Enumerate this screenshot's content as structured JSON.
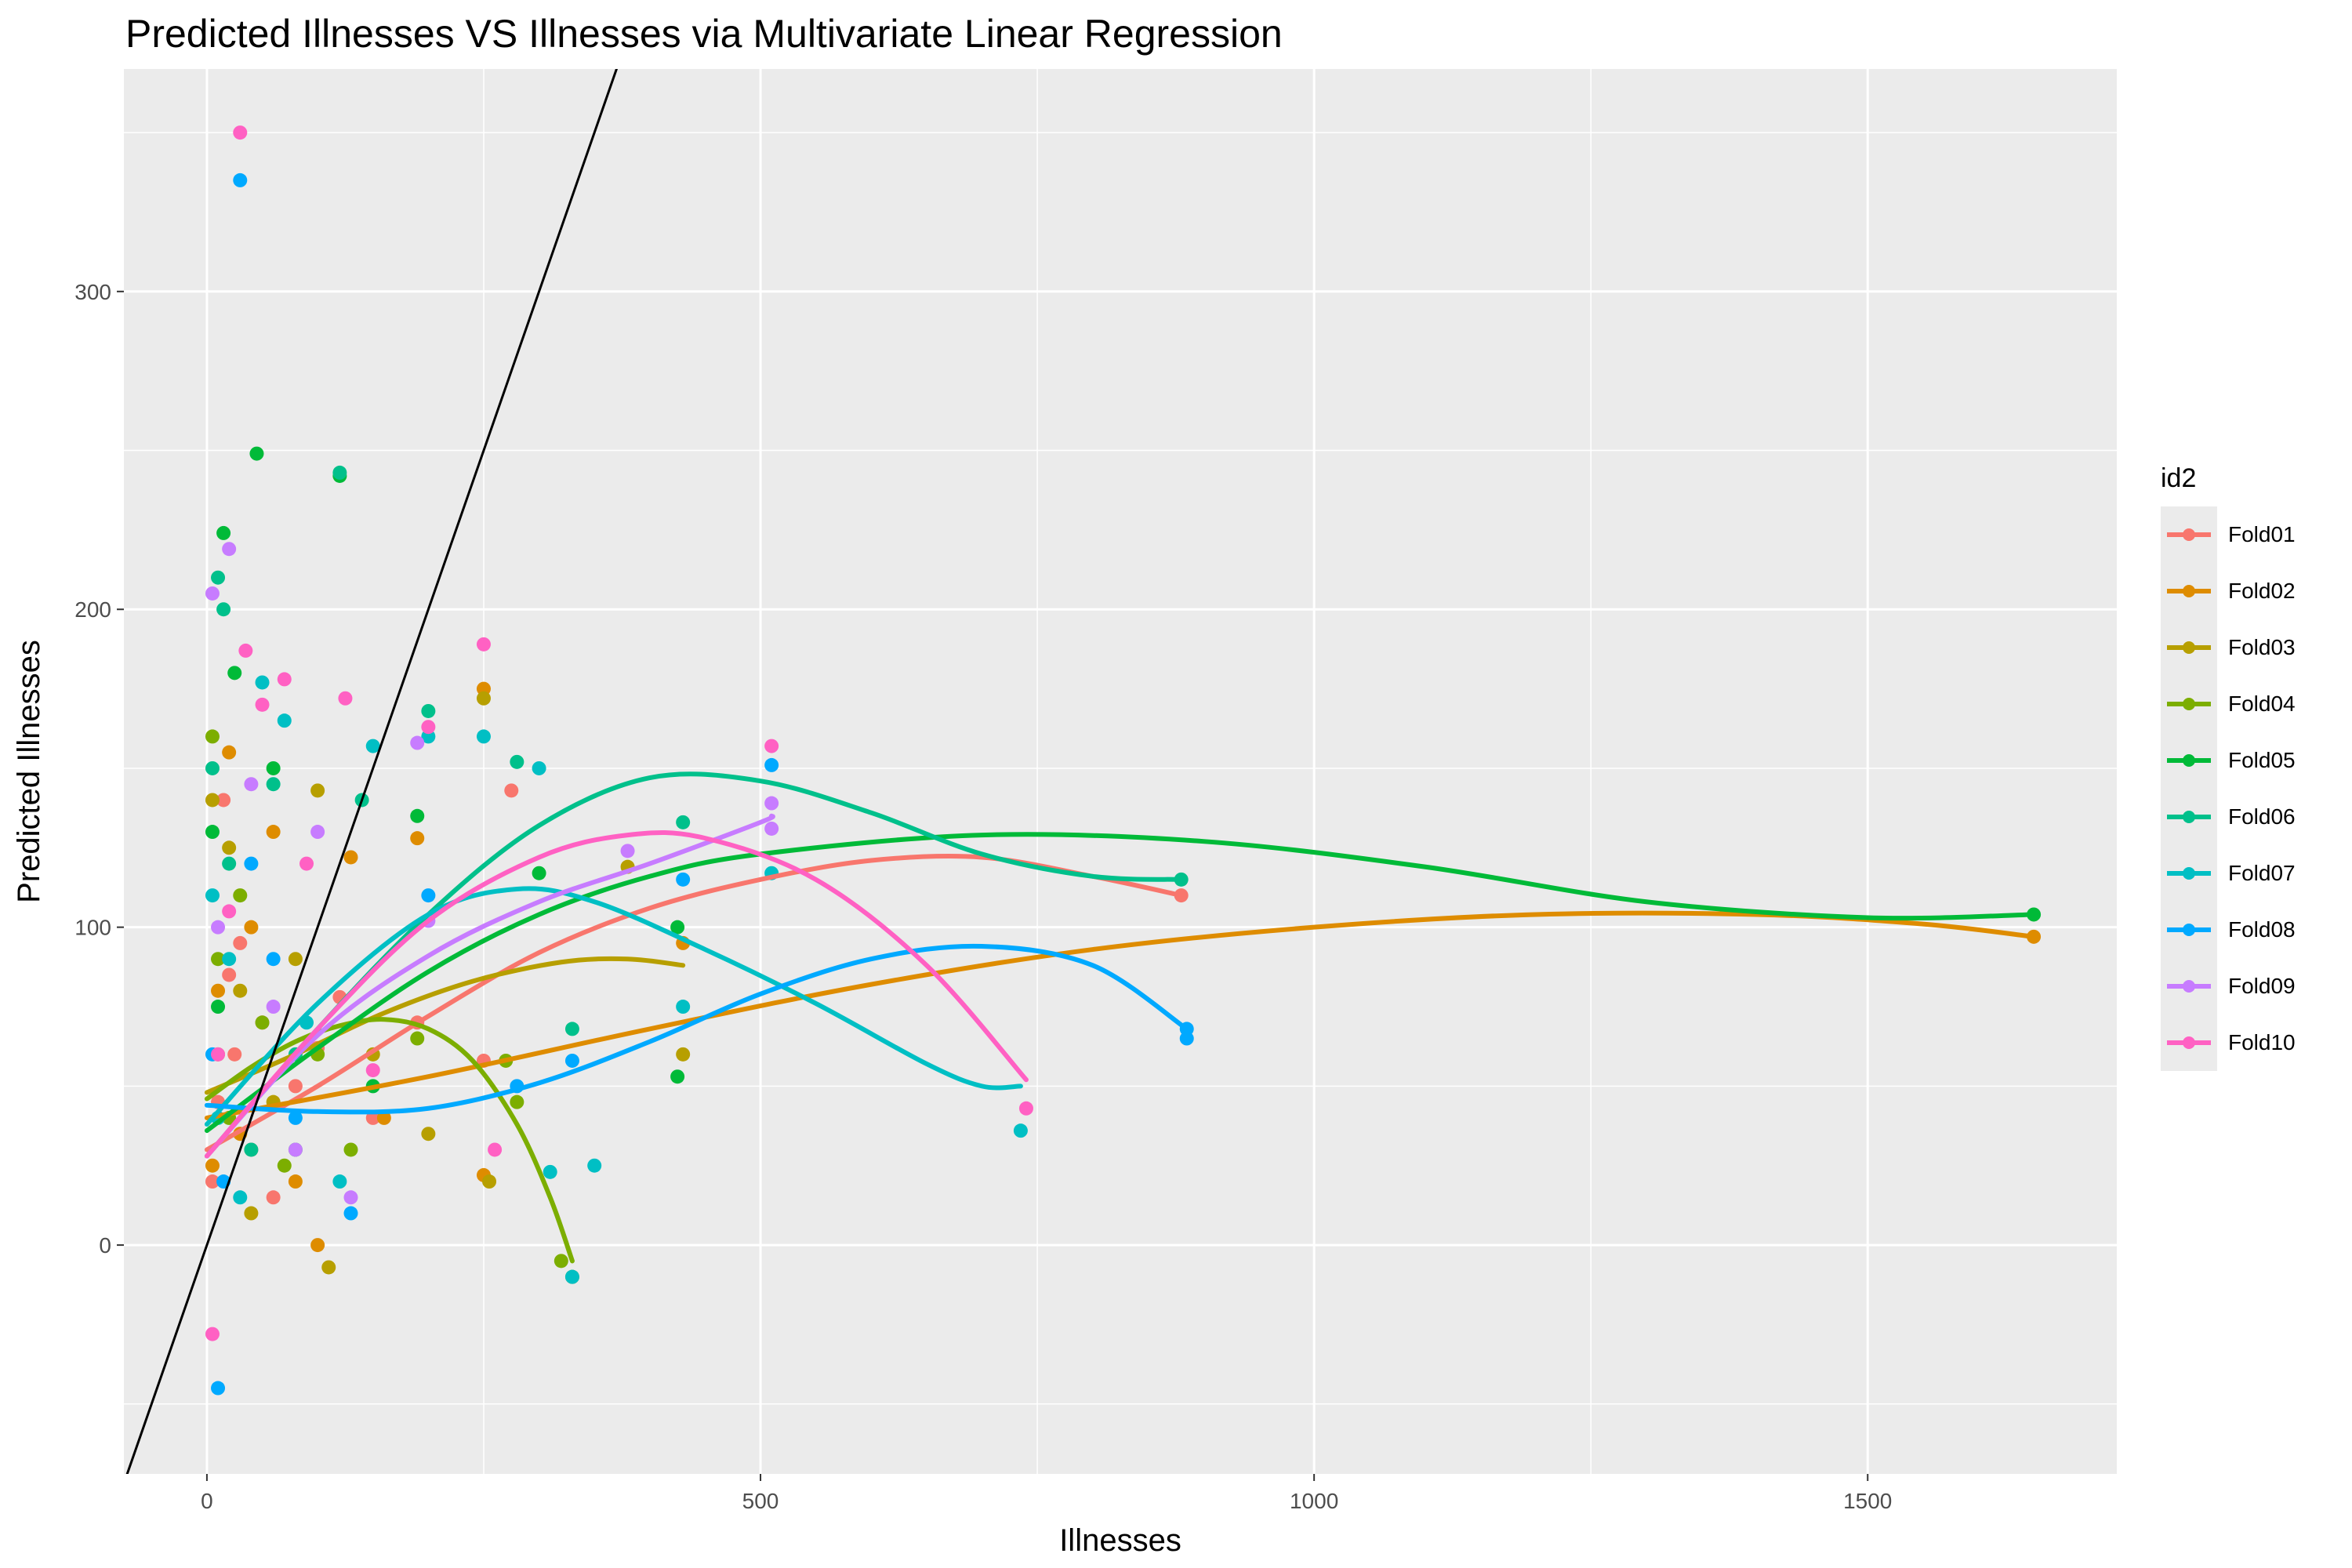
{
  "chart_data": {
    "type": "scatter",
    "title": "Predicted Illnesses VS Illnesses via Multivariate Linear Regression",
    "xlabel": "Illnesses",
    "ylabel": "Predicted Illnesses",
    "xlim": [
      -75,
      1725
    ],
    "ylim": [
      -72,
      370
    ],
    "x_ticks": [
      0,
      500,
      1000,
      1500
    ],
    "y_ticks": [
      0,
      100,
      200,
      300
    ],
    "grid": true,
    "legend_position": "right",
    "legend_title": "id2",
    "reference_line": {
      "slope": 1,
      "intercept": 0,
      "color": "#000000"
    },
    "series": [
      {
        "name": "Fold01",
        "color": "#F8766D",
        "points": [
          [
            5,
            20
          ],
          [
            10,
            45
          ],
          [
            15,
            140
          ],
          [
            20,
            85
          ],
          [
            25,
            60
          ],
          [
            30,
            95
          ],
          [
            40,
            30
          ],
          [
            50,
            70
          ],
          [
            60,
            15
          ],
          [
            80,
            50
          ],
          [
            100,
            62
          ],
          [
            120,
            78
          ],
          [
            150,
            40
          ],
          [
            190,
            70
          ],
          [
            250,
            58
          ],
          [
            275,
            143
          ],
          [
            880,
            110
          ]
        ],
        "smooth": [
          [
            0,
            30
          ],
          [
            100,
            50
          ],
          [
            200,
            72
          ],
          [
            300,
            92
          ],
          [
            400,
            106
          ],
          [
            500,
            115
          ],
          [
            600,
            121
          ],
          [
            700,
            122
          ],
          [
            800,
            116
          ],
          [
            880,
            110
          ]
        ]
      },
      {
        "name": "Fold02",
        "color": "#DE8C00",
        "points": [
          [
            5,
            25
          ],
          [
            10,
            80
          ],
          [
            20,
            155
          ],
          [
            30,
            35
          ],
          [
            40,
            100
          ],
          [
            60,
            130
          ],
          [
            80,
            20
          ],
          [
            100,
            0
          ],
          [
            130,
            122
          ],
          [
            160,
            40
          ],
          [
            190,
            128
          ],
          [
            250,
            175
          ],
          [
            250,
            22
          ],
          [
            430,
            95
          ],
          [
            1650,
            97
          ]
        ],
        "smooth": [
          [
            0,
            40
          ],
          [
            200,
            53
          ],
          [
            400,
            68
          ],
          [
            600,
            82
          ],
          [
            800,
            93
          ],
          [
            1000,
            100
          ],
          [
            1200,
            104
          ],
          [
            1400,
            104
          ],
          [
            1550,
            101
          ],
          [
            1650,
            97
          ]
        ]
      },
      {
        "name": "Fold03",
        "color": "#B79F00",
        "points": [
          [
            5,
            140
          ],
          [
            10,
            60
          ],
          [
            20,
            125
          ],
          [
            30,
            80
          ],
          [
            40,
            10
          ],
          [
            60,
            45
          ],
          [
            80,
            90
          ],
          [
            100,
            143
          ],
          [
            110,
            -7
          ],
          [
            150,
            60
          ],
          [
            200,
            35
          ],
          [
            250,
            172
          ],
          [
            255,
            20
          ],
          [
            380,
            119
          ],
          [
            430,
            60
          ]
        ],
        "smooth": [
          [
            0,
            48
          ],
          [
            80,
            60
          ],
          [
            160,
            73
          ],
          [
            240,
            83
          ],
          [
            320,
            89
          ],
          [
            380,
            90
          ],
          [
            430,
            88
          ]
        ]
      },
      {
        "name": "Fold04",
        "color": "#7CAE00",
        "points": [
          [
            5,
            160
          ],
          [
            10,
            90
          ],
          [
            20,
            40
          ],
          [
            30,
            110
          ],
          [
            50,
            70
          ],
          [
            70,
            25
          ],
          [
            100,
            60
          ],
          [
            130,
            30
          ],
          [
            190,
            65
          ],
          [
            270,
            58
          ],
          [
            280,
            45
          ],
          [
            320,
            -5
          ],
          [
            330,
            -10
          ]
        ],
        "smooth": [
          [
            0,
            46
          ],
          [
            40,
            56
          ],
          [
            80,
            64
          ],
          [
            120,
            69
          ],
          [
            160,
            71
          ],
          [
            200,
            68
          ],
          [
            240,
            58
          ],
          [
            280,
            38
          ],
          [
            310,
            15
          ],
          [
            330,
            -5
          ]
        ]
      },
      {
        "name": "Fold05",
        "color": "#00BA38",
        "points": [
          [
            5,
            130
          ],
          [
            10,
            75
          ],
          [
            15,
            224
          ],
          [
            25,
            180
          ],
          [
            45,
            249
          ],
          [
            60,
            150
          ],
          [
            80,
            30
          ],
          [
            120,
            242
          ],
          [
            150,
            50
          ],
          [
            190,
            135
          ],
          [
            300,
            117
          ],
          [
            425,
            100
          ],
          [
            425,
            53
          ],
          [
            1650,
            104
          ]
        ],
        "smooth": [
          [
            0,
            36
          ],
          [
            100,
            62
          ],
          [
            200,
            86
          ],
          [
            300,
            104
          ],
          [
            400,
            116
          ],
          [
            500,
            123
          ],
          [
            700,
            129
          ],
          [
            900,
            127
          ],
          [
            1100,
            119
          ],
          [
            1300,
            108
          ],
          [
            1500,
            103
          ],
          [
            1650,
            104
          ]
        ]
      },
      {
        "name": "Fold06",
        "color": "#00C08B",
        "points": [
          [
            5,
            150
          ],
          [
            10,
            210
          ],
          [
            15,
            200
          ],
          [
            20,
            120
          ],
          [
            40,
            30
          ],
          [
            60,
            145
          ],
          [
            80,
            60
          ],
          [
            120,
            243
          ],
          [
            140,
            140
          ],
          [
            200,
            168
          ],
          [
            280,
            152
          ],
          [
            330,
            68
          ],
          [
            430,
            133
          ],
          [
            880,
            115
          ]
        ],
        "smooth": [
          [
            0,
            28
          ],
          [
            100,
            68
          ],
          [
            200,
            104
          ],
          [
            300,
            132
          ],
          [
            400,
            147
          ],
          [
            500,
            146
          ],
          [
            600,
            136
          ],
          [
            700,
            123
          ],
          [
            800,
            116
          ],
          [
            880,
            115
          ]
        ]
      },
      {
        "name": "Fold07",
        "color": "#00BFC4",
        "points": [
          [
            5,
            110
          ],
          [
            10,
            40
          ],
          [
            20,
            90
          ],
          [
            30,
            15
          ],
          [
            50,
            177
          ],
          [
            70,
            165
          ],
          [
            90,
            70
          ],
          [
            120,
            20
          ],
          [
            150,
            157
          ],
          [
            200,
            160
          ],
          [
            250,
            160
          ],
          [
            300,
            150
          ],
          [
            310,
            23
          ],
          [
            330,
            -10
          ],
          [
            350,
            25
          ],
          [
            430,
            75
          ],
          [
            510,
            117
          ],
          [
            735,
            36
          ]
        ],
        "smooth": [
          [
            0,
            38
          ],
          [
            100,
            76
          ],
          [
            200,
            104
          ],
          [
            280,
            112
          ],
          [
            350,
            108
          ],
          [
            450,
            93
          ],
          [
            550,
            76
          ],
          [
            650,
            57
          ],
          [
            700,
            50
          ],
          [
            735,
            50
          ]
        ]
      },
      {
        "name": "Fold08",
        "color": "#00A9FF",
        "points": [
          [
            5,
            60
          ],
          [
            10,
            -45
          ],
          [
            15,
            20
          ],
          [
            30,
            335
          ],
          [
            40,
            120
          ],
          [
            60,
            90
          ],
          [
            80,
            40
          ],
          [
            130,
            10
          ],
          [
            200,
            110
          ],
          [
            280,
            50
          ],
          [
            330,
            58
          ],
          [
            430,
            115
          ],
          [
            510,
            151
          ],
          [
            885,
            68
          ],
          [
            885,
            65
          ]
        ],
        "smooth": [
          [
            0,
            44
          ],
          [
            100,
            42
          ],
          [
            200,
            43
          ],
          [
            300,
            51
          ],
          [
            400,
            64
          ],
          [
            500,
            79
          ],
          [
            600,
            90
          ],
          [
            700,
            94
          ],
          [
            800,
            88
          ],
          [
            885,
            68
          ]
        ]
      },
      {
        "name": "Fold09",
        "color": "#C77CFF",
        "points": [
          [
            5,
            205
          ],
          [
            10,
            100
          ],
          [
            20,
            219
          ],
          [
            40,
            145
          ],
          [
            60,
            75
          ],
          [
            80,
            30
          ],
          [
            100,
            130
          ],
          [
            130,
            15
          ],
          [
            190,
            158
          ],
          [
            200,
            102
          ],
          [
            380,
            124
          ],
          [
            510,
            139
          ],
          [
            510,
            131
          ]
        ],
        "smooth": [
          [
            0,
            28
          ],
          [
            100,
            66
          ],
          [
            200,
            91
          ],
          [
            300,
            108
          ],
          [
            400,
            120
          ],
          [
            500,
            133
          ],
          [
            510,
            135
          ]
        ]
      },
      {
        "name": "Fold10",
        "color": "#FF61C3",
        "points": [
          [
            5,
            -28
          ],
          [
            10,
            60
          ],
          [
            20,
            105
          ],
          [
            30,
            350
          ],
          [
            35,
            187
          ],
          [
            50,
            170
          ],
          [
            70,
            178
          ],
          [
            90,
            120
          ],
          [
            125,
            172
          ],
          [
            150,
            55
          ],
          [
            200,
            163
          ],
          [
            250,
            189
          ],
          [
            260,
            30
          ],
          [
            510,
            157
          ],
          [
            740,
            43
          ]
        ],
        "smooth": [
          [
            0,
            28
          ],
          [
            100,
            68
          ],
          [
            200,
            102
          ],
          [
            300,
            122
          ],
          [
            380,
            129
          ],
          [
            450,
            128
          ],
          [
            550,
            115
          ],
          [
            650,
            88
          ],
          [
            740,
            52
          ]
        ]
      }
    ]
  }
}
